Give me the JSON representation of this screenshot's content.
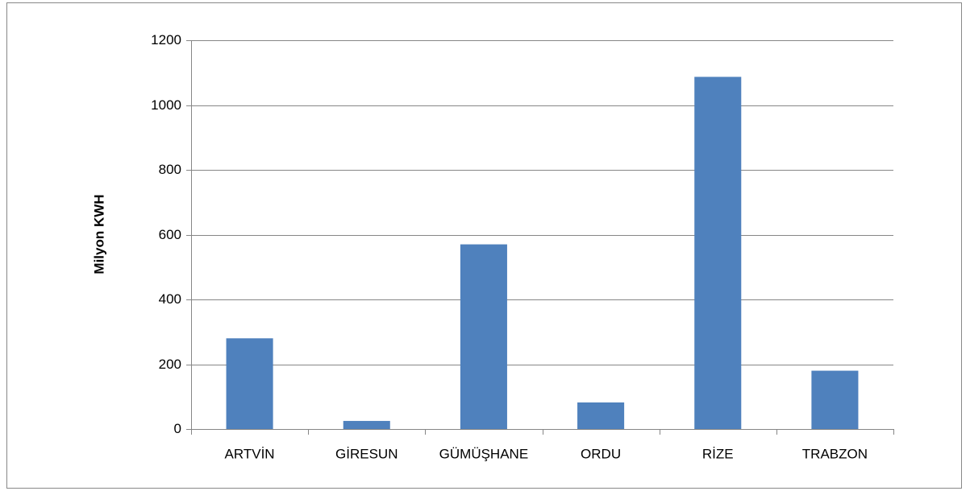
{
  "chart_data": {
    "type": "bar",
    "y_label": "Milyon KWH",
    "categories": [
      "ARTVİN",
      "GİRESUN",
      "GÜMÜŞHANE",
      "ORDU",
      "RİZE",
      "TRABZON"
    ],
    "values": [
      280,
      25,
      570,
      82,
      1087,
      180
    ],
    "color": "#4f81bd",
    "ylim": [
      0,
      1200
    ],
    "yticks": [
      0,
      200,
      400,
      600,
      800,
      1000,
      1200
    ],
    "grid": true
  }
}
